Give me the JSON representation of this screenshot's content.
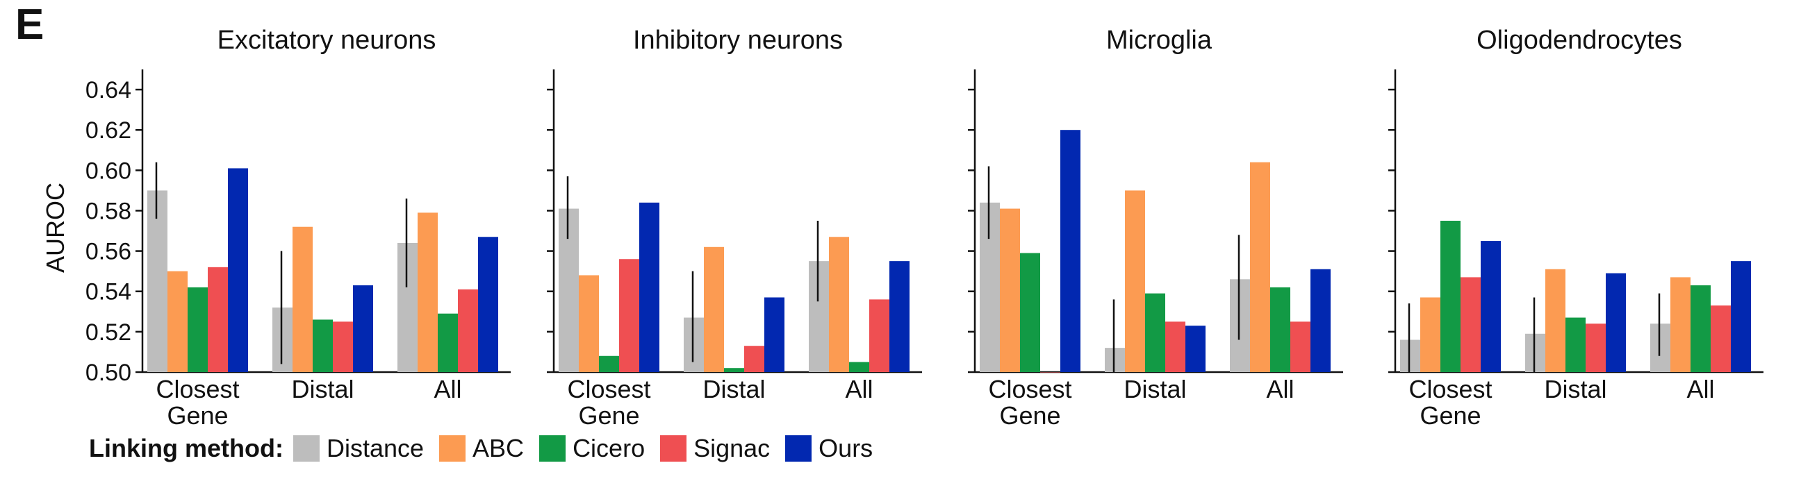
{
  "panel_label": "E",
  "legend": {
    "title": "Linking method:",
    "items": [
      {
        "label": "Distance",
        "color": "#bdbdbd"
      },
      {
        "label": "ABC",
        "color": "#fc9b52"
      },
      {
        "label": "Cicero",
        "color": "#129a45"
      },
      {
        "label": "Signac",
        "color": "#ef4f52"
      },
      {
        "label": "Ours",
        "color": "#0228b0"
      }
    ]
  },
  "chart_data": [
    {
      "type": "bar",
      "title": "Excitatory neurons",
      "ylabel": "AUROC",
      "ylim": [
        0.5,
        0.65
      ],
      "yticks": [
        "0.50",
        "0.52",
        "0.54",
        "0.56",
        "0.58",
        "0.60",
        "0.62",
        "0.64"
      ],
      "categories": [
        [
          "Closest",
          "Gene"
        ],
        [
          "Distal"
        ],
        [
          "All"
        ]
      ],
      "series": [
        {
          "name": "Distance",
          "values": [
            0.59,
            0.532,
            0.564
          ],
          "error": [
            [
              0.576,
              0.604
            ],
            [
              0.504,
              0.56
            ],
            [
              0.542,
              0.586
            ]
          ]
        },
        {
          "name": "ABC",
          "values": [
            0.55,
            0.572,
            0.579
          ]
        },
        {
          "name": "Cicero",
          "values": [
            0.542,
            0.526,
            0.529
          ]
        },
        {
          "name": "Signac",
          "values": [
            0.552,
            0.525,
            0.541
          ]
        },
        {
          "name": "Ours",
          "values": [
            0.601,
            0.543,
            0.567
          ]
        }
      ]
    },
    {
      "type": "bar",
      "title": "Inhibitory neurons",
      "ylim": [
        0.5,
        0.65
      ],
      "categories": [
        [
          "Closest",
          "Gene"
        ],
        [
          "Distal"
        ],
        [
          "All"
        ]
      ],
      "series": [
        {
          "name": "Distance",
          "values": [
            0.581,
            0.527,
            0.555
          ],
          "error": [
            [
              0.566,
              0.597
            ],
            [
              0.505,
              0.55
            ],
            [
              0.535,
              0.575
            ]
          ]
        },
        {
          "name": "ABC",
          "values": [
            0.548,
            0.562,
            0.567
          ]
        },
        {
          "name": "Cicero",
          "values": [
            0.508,
            0.502,
            0.505
          ]
        },
        {
          "name": "Signac",
          "values": [
            0.556,
            0.513,
            0.536
          ]
        },
        {
          "name": "Ours",
          "values": [
            0.584,
            0.537,
            0.555
          ]
        }
      ]
    },
    {
      "type": "bar",
      "title": "Microglia",
      "ylim": [
        0.5,
        0.65
      ],
      "categories": [
        [
          "Closest",
          "Gene"
        ],
        [
          "Distal"
        ],
        [
          "All"
        ]
      ],
      "series": [
        {
          "name": "Distance",
          "values": [
            0.584,
            0.512,
            0.546
          ],
          "error": [
            [
              0.566,
              0.602
            ],
            [
              0.5,
              0.536
            ],
            [
              0.516,
              0.568
            ]
          ]
        },
        {
          "name": "ABC",
          "values": [
            0.581,
            0.59,
            0.604
          ]
        },
        {
          "name": "Cicero",
          "values": [
            0.559,
            0.539,
            0.542
          ]
        },
        {
          "name": "Signac",
          "values": [
            0.5,
            0.525,
            0.525
          ]
        },
        {
          "name": "Ours",
          "values": [
            0.62,
            0.523,
            0.551
          ]
        }
      ]
    },
    {
      "type": "bar",
      "title": "Oligodendrocytes",
      "ylim": [
        0.5,
        0.65
      ],
      "categories": [
        [
          "Closest",
          "Gene"
        ],
        [
          "Distal"
        ],
        [
          "All"
        ]
      ],
      "series": [
        {
          "name": "Distance",
          "values": [
            0.516,
            0.519,
            0.524
          ],
          "error": [
            [
              0.5,
              0.534
            ],
            [
              0.5,
              0.537
            ],
            [
              0.508,
              0.539
            ]
          ]
        },
        {
          "name": "ABC",
          "values": [
            0.537,
            0.551,
            0.547
          ]
        },
        {
          "name": "Cicero",
          "values": [
            0.575,
            0.527,
            0.543
          ]
        },
        {
          "name": "Signac",
          "values": [
            0.547,
            0.524,
            0.533
          ]
        },
        {
          "name": "Ours",
          "values": [
            0.565,
            0.549,
            0.555
          ]
        }
      ]
    }
  ]
}
